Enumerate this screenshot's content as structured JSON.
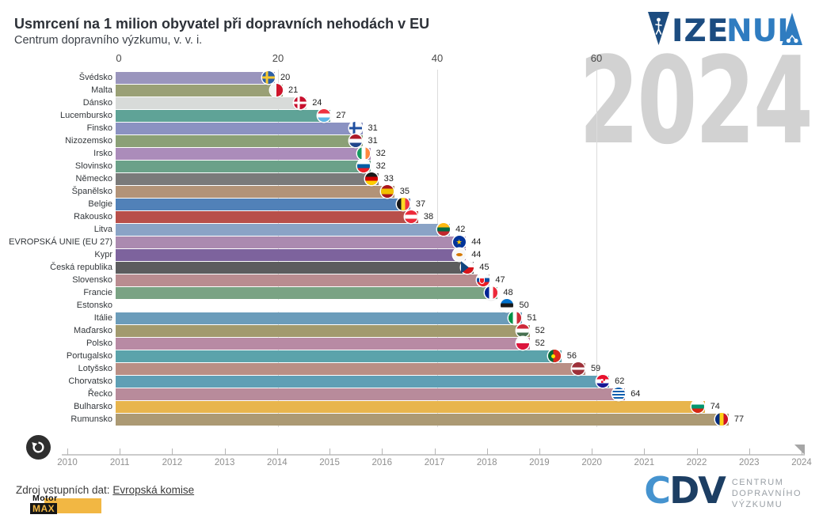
{
  "header": {
    "title": "Usmrcení na 1 milion obyvatel při dopravních nehodách v EU",
    "subtitle": "Centrum dopravního výzkumu, v. v. i.",
    "brand": {
      "part1": "VIZE",
      "part2": "NULA"
    }
  },
  "watermark": "2024",
  "chart_data": {
    "type": "bar",
    "orientation": "horizontal",
    "title": "Usmrcení na 1 milion obyvatel při dopravních nehodách v EU",
    "subtitle": "Centrum dopravního výzkumu, v. v. i.",
    "xlabel": "",
    "ylabel": "",
    "axis_ticks": [
      0,
      20,
      40,
      60
    ],
    "xlim": [
      0,
      77
    ],
    "grid": true,
    "rows": [
      {
        "label": "Švédsko",
        "value": 20,
        "color": "#9a95bd",
        "flag": "se"
      },
      {
        "label": "Malta",
        "value": 21,
        "color": "#9aa076",
        "flag": "mt"
      },
      {
        "label": "Dánsko",
        "value": 24,
        "color": "#d8dbd9",
        "flag": "dk"
      },
      {
        "label": "Lucembursko",
        "value": 27,
        "color": "#5fa397",
        "flag": "lu"
      },
      {
        "label": "Finsko",
        "value": 31,
        "color": "#8b92c2",
        "flag": "fi"
      },
      {
        "label": "Nizozemsko",
        "value": 31,
        "color": "#8ba077",
        "flag": "nl"
      },
      {
        "label": "Irsko",
        "value": 32,
        "color": "#ab8cba",
        "flag": "ie"
      },
      {
        "label": "Slovinsko",
        "value": 32,
        "color": "#6ba189",
        "flag": "si"
      },
      {
        "label": "Německo",
        "value": 33,
        "color": "#7a7a7a",
        "flag": "de"
      },
      {
        "label": "Španělsko",
        "value": 35,
        "color": "#b29378",
        "flag": "es"
      },
      {
        "label": "Belgie",
        "value": 37,
        "color": "#5181b8",
        "flag": "be"
      },
      {
        "label": "Rakousko",
        "value": 38,
        "color": "#b84f4a",
        "flag": "at"
      },
      {
        "label": "Litva",
        "value": 42,
        "color": "#8aa3c6",
        "flag": "lt"
      },
      {
        "label": "EVROPSKÁ UNIE (EU 27)",
        "value": 44,
        "color": "#ab8ab0",
        "flag": "eu"
      },
      {
        "label": "Kypr",
        "value": 44,
        "color": "#7d639d",
        "flag": "cy"
      },
      {
        "label": "Česká republika",
        "value": 45,
        "color": "#5c5c5e",
        "flag": "cz"
      },
      {
        "label": "Slovensko",
        "value": 47,
        "color": "#b98c90",
        "flag": "sk"
      },
      {
        "label": "Francie",
        "value": 48,
        "color": "#7aa384",
        "flag": "fr"
      },
      {
        "label": "Estonsko",
        "value": 50,
        "color": "#ffffff",
        "flag": "ee"
      },
      {
        "label": "Itálie",
        "value": 51,
        "color": "#6b9cba",
        "flag": "it"
      },
      {
        "label": "Maďarsko",
        "value": 52,
        "color": "#a29a6e",
        "flag": "hu"
      },
      {
        "label": "Polsko",
        "value": 52,
        "color": "#b88aa4",
        "flag": "pl"
      },
      {
        "label": "Portugalsko",
        "value": 56,
        "color": "#5ba3ab",
        "flag": "pt"
      },
      {
        "label": "Lotyšsko",
        "value": 59,
        "color": "#b98f85",
        "flag": "lv"
      },
      {
        "label": "Chorvatsko",
        "value": 62,
        "color": "#5f9fb5",
        "flag": "hr"
      },
      {
        "label": "Řecko",
        "value": 64,
        "color": "#b88b9b",
        "flag": "gr"
      },
      {
        "label": "Bulharsko",
        "value": 74,
        "color": "#e8b54d",
        "flag": "bg"
      },
      {
        "label": "Rumunsko",
        "value": 77,
        "color": "#ac9a74",
        "flag": "ro"
      }
    ]
  },
  "timeline": {
    "years": [
      "2010",
      "2011",
      "2012",
      "2013",
      "2014",
      "2015",
      "2016",
      "2017",
      "2018",
      "2019",
      "2020",
      "2021",
      "2022",
      "2023",
      "2024"
    ],
    "selected": "2024"
  },
  "footer": {
    "source_label": "Zdroj vstupních dat: ",
    "source_link": "Evropská komise",
    "motormax": {
      "line1": "Motor",
      "line2": "MAX"
    },
    "cdv": {
      "c": "C",
      "d": "D",
      "v": "V",
      "line1": "CENTRUM",
      "line2": "DOPRAVNÍHO",
      "line3": "VÝZKUMU"
    }
  },
  "colors": {
    "brand_dark": "#1c4c80",
    "brand_light": "#2f7cc0",
    "watermark": "#d2d2d2",
    "gridline": "#dcdcdc",
    "motormax_yellow": "#f2b743"
  }
}
